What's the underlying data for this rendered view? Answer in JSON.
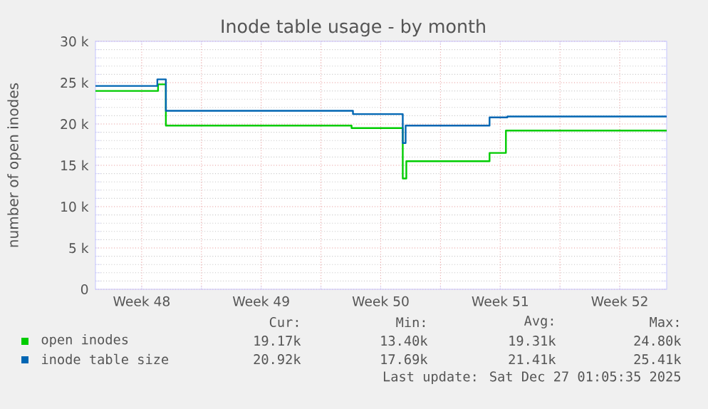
{
  "chart_data": {
    "type": "step",
    "title": "Inode table usage - by month",
    "ylabel": "number of open inodes",
    "x": [
      "2025-11-24T19:00",
      "2025-11-28T11:00",
      "2025-11-28T22:00",
      "2025-12-09T19:00",
      "2025-12-12T19:00",
      "2025-12-13T00:00",
      "2025-12-17T21:00",
      "2025-12-18T20:00",
      "2025-12-28T06:00"
    ],
    "series": [
      {
        "name": "open inodes",
        "color": "#00cc00",
        "values": [
          24.0,
          24.8,
          19.8,
          19.5,
          13.4,
          15.5,
          16.5,
          19.2,
          19.2
        ]
      },
      {
        "name": "inode table size",
        "color": "#0066b3",
        "x": [
          "2025-11-24T19:00",
          "2025-11-28T10:00",
          "2025-11-28T22:00",
          "2025-12-09T21:00",
          "2025-12-12T19:00",
          "2025-12-12T23:00",
          "2025-12-17T21:00",
          "2025-12-18T22:00",
          "2025-12-28T06:00"
        ],
        "values": [
          24.6,
          25.4,
          21.6,
          21.2,
          17.7,
          19.8,
          20.8,
          20.9,
          20.9
        ]
      }
    ],
    "xlim": [
      "2025-11-24T19:00",
      "2025-12-28T06:00"
    ],
    "xticks": [
      {
        "value": "2025-11-27T12:00",
        "label": "Week 48"
      },
      {
        "value": "2025-12-01",
        "label": null
      },
      {
        "value": "2025-12-04T12:00",
        "label": "Week 49"
      },
      {
        "value": "2025-12-08",
        "label": null
      },
      {
        "value": "2025-12-11T12:00",
        "label": "Week 50"
      },
      {
        "value": "2025-12-15",
        "label": null
      },
      {
        "value": "2025-12-18T12:00",
        "label": "Week 51"
      },
      {
        "value": "2025-12-22",
        "label": null
      },
      {
        "value": "2025-12-25T12:00",
        "label": "Week 52"
      }
    ],
    "ylim": [
      0,
      30
    ],
    "yticks": [
      0,
      {
        "value": 5,
        "label": "5 k"
      },
      {
        "value": 10,
        "label": "10 k"
      },
      {
        "value": 15,
        "label": "15 k"
      },
      {
        "value": 20,
        "label": "20 k"
      },
      {
        "value": 25,
        "label": "25 k"
      },
      {
        "value": 30,
        "label": "30 k"
      }
    ],
    "grid": true,
    "legend": "bottom",
    "annotations": [
      "Cur:",
      "Min:",
      "Avg:",
      "Max:",
      "19.17k",
      "13.40k",
      "19.31k",
      "24.80k",
      "20.92k",
      "17.69k",
      "21.41k",
      "25.41k",
      "Last update: Sat Dec 27 01:05:35 2025"
    ]
  }
}
